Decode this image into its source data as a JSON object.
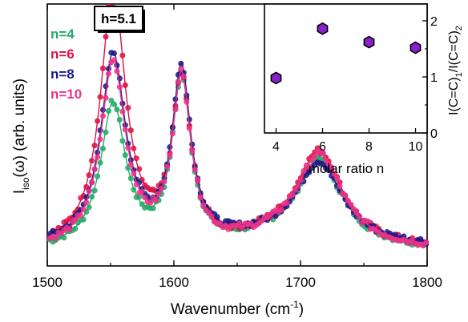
{
  "chart_data": [
    {
      "type": "line",
      "title": "",
      "xlabel": "Wavenumber (cm-1)",
      "xlabel_parts": {
        "main": "Wavenumber (cm",
        "sup": "-1",
        "end": ")"
      },
      "ylabel": "Iiso(ω) (arb. units)",
      "ylabel_parts": {
        "main": "I",
        "sub": "iso",
        "rest": "(ω) (arb. units)"
      },
      "xlim": [
        1500,
        1800
      ],
      "x_ticks": [
        1500,
        1600,
        1700,
        1800
      ],
      "y_ticks_shown": false,
      "legend_position": "top-left",
      "annotation": "h=5.1",
      "peaks": [
        1552,
        1606,
        1715
      ],
      "series": [
        {
          "name": "n=4",
          "color": "#22aa66",
          "peak_heights": [
            0.55,
            0.64,
            0.33
          ],
          "baseline": 0.06
        },
        {
          "name": "n=6",
          "color": "#dd1144",
          "peak_heights": [
            0.99,
            0.62,
            0.36
          ],
          "baseline": 0.06
        },
        {
          "name": "n=8",
          "color": "#1a1a88",
          "peak_heights": [
            0.73,
            0.66,
            0.31
          ],
          "baseline": 0.07
        },
        {
          "name": "n=10",
          "color": "#ee3388",
          "peak_heights": [
            0.71,
            0.64,
            0.35
          ],
          "baseline": 0.06
        }
      ]
    },
    {
      "type": "scatter",
      "title": "",
      "xlabel": "molar ratio n",
      "ylabel": "I(C=C)1/I(C=C)2",
      "ylabel_parts": {
        "a": "I(C=C)",
        "sub1": "1",
        "b": "/I(C=C)",
        "sub2": "2"
      },
      "xlim": [
        3.5,
        10.5
      ],
      "ylim": [
        0,
        2.3
      ],
      "x_ticks": [
        4,
        6,
        8,
        10
      ],
      "y_ticks": [
        0,
        1,
        2
      ],
      "marker": "hexagon",
      "marker_color": "#8822cc",
      "x": [
        4,
        6,
        8,
        10
      ],
      "y": [
        0.98,
        1.86,
        1.62,
        1.52
      ]
    }
  ]
}
